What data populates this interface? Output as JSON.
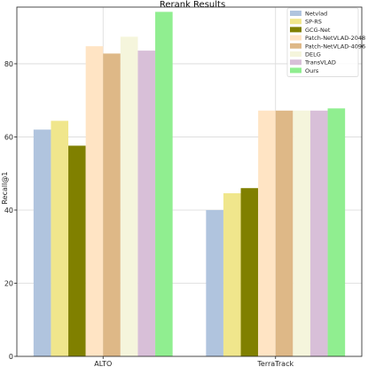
{
  "chart_data": {
    "type": "bar",
    "title": "Rerank Results",
    "xlabel": "",
    "ylabel": "Recall@1",
    "categories": [
      "ALTO",
      "TerraTrack"
    ],
    "yticks": [
      0,
      20,
      40,
      60,
      80
    ],
    "ylim": [
      0,
      95.5
    ],
    "grid": true,
    "legend_position": "top-right",
    "series": [
      {
        "name": "Netvlad",
        "color": "#b0c4de",
        "values": [
          62.0,
          40.0
        ]
      },
      {
        "name": "SP-RS",
        "color": "#f0e68c",
        "values": [
          64.4,
          44.6
        ]
      },
      {
        "name": "GCG-Net",
        "color": "#808000",
        "values": [
          57.6,
          46.0
        ]
      },
      {
        "name": "Patch-NetVLAD-2048",
        "color": "#ffe4c4",
        "values": [
          84.8,
          67.2
        ]
      },
      {
        "name": "Patch-NetVLAD-4096",
        "color": "#deb887",
        "values": [
          82.8,
          67.2
        ]
      },
      {
        "name": "DELG",
        "color": "#f5f5dc",
        "values": [
          87.4,
          67.2
        ]
      },
      {
        "name": "TransVLAD",
        "color": "#d8bfd8",
        "values": [
          83.6,
          67.2
        ]
      },
      {
        "name": "Ours",
        "color": "#90ee90",
        "values": [
          94.2,
          67.8
        ]
      }
    ]
  }
}
